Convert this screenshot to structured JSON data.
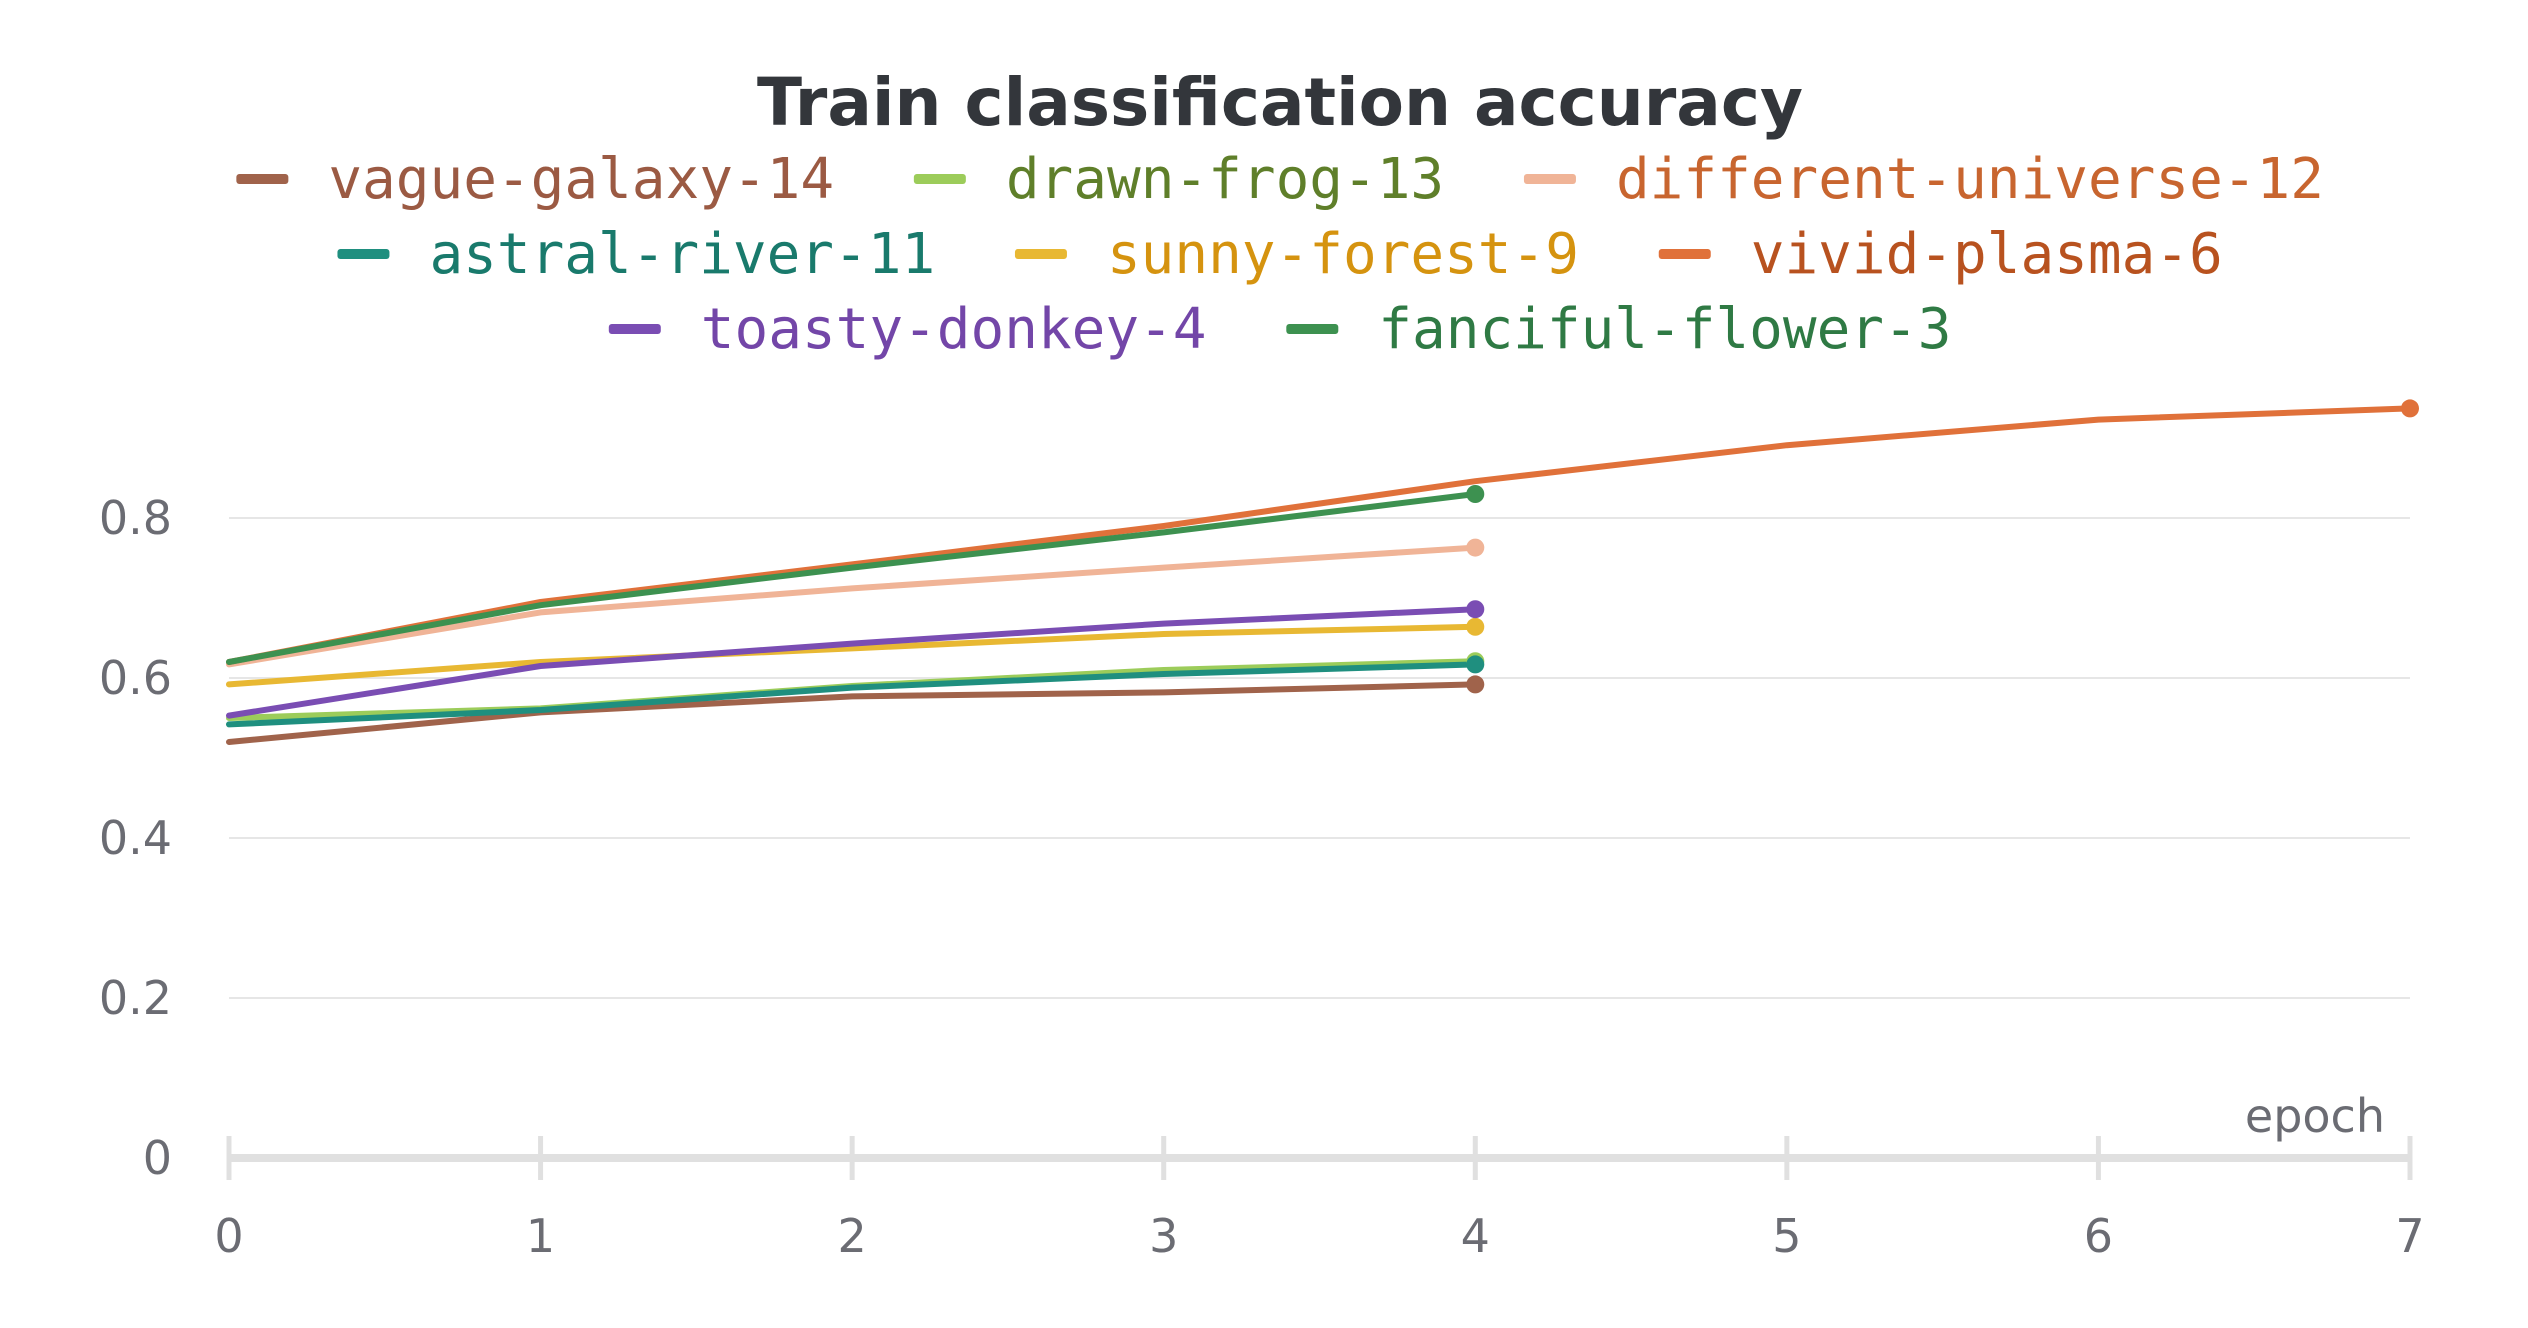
{
  "chart_data": {
    "type": "line",
    "title": "Train classification accuracy",
    "xlabel": "epoch",
    "ylabel": "",
    "xlim": [
      0,
      7
    ],
    "ylim": [
      0,
      0.95
    ],
    "x_ticks": [
      "0",
      "1",
      "2",
      "3",
      "4",
      "5",
      "6",
      "7"
    ],
    "y_ticks": [
      "0",
      "0.2",
      "0.4",
      "0.6",
      "0.8"
    ],
    "grid": true,
    "legend_position": "top",
    "series": [
      {
        "name": "vague-galaxy-14",
        "color": "#a0634b",
        "x": [
          0,
          1,
          2,
          3,
          4
        ],
        "values": [
          0.52,
          0.557,
          0.577,
          0.582,
          0.592
        ]
      },
      {
        "name": "drawn-frog-13",
        "color": "#9ccc5a",
        "x": [
          0,
          1,
          2,
          3,
          4
        ],
        "values": [
          0.55,
          0.562,
          0.59,
          0.61,
          0.621
        ]
      },
      {
        "name": "different-universe-12",
        "color": "#f0b497",
        "x": [
          0,
          1,
          2,
          3,
          4
        ],
        "values": [
          0.617,
          0.682,
          0.712,
          0.738,
          0.763
        ]
      },
      {
        "name": "astral-river-11",
        "color": "#1f8f7f",
        "x": [
          0,
          1,
          2,
          3,
          4
        ],
        "values": [
          0.542,
          0.56,
          0.588,
          0.605,
          0.617
        ]
      },
      {
        "name": "sunny-forest-9",
        "color": "#e8b833",
        "x": [
          0,
          1,
          2,
          3,
          4
        ],
        "values": [
          0.592,
          0.62,
          0.637,
          0.655,
          0.664
        ]
      },
      {
        "name": "vivid-plasma-6",
        "color": "#e0713a",
        "x": [
          0,
          1,
          2,
          3,
          4,
          5,
          6,
          7
        ],
        "values": [
          0.62,
          0.695,
          0.742,
          0.79,
          0.846,
          0.891,
          0.923,
          0.937
        ]
      },
      {
        "name": "toasty-donkey-4",
        "color": "#7a4db3",
        "x": [
          0,
          1,
          2,
          3,
          4
        ],
        "values": [
          0.553,
          0.615,
          0.643,
          0.668,
          0.686
        ]
      },
      {
        "name": "fanciful-flower-3",
        "color": "#3d9150",
        "x": [
          0,
          1,
          2,
          3,
          4
        ],
        "values": [
          0.62,
          0.691,
          0.738,
          0.782,
          0.83
        ]
      }
    ]
  },
  "legend_text_colors": {
    "vague-galaxy-14": "#9b5a43",
    "drawn-frog-13": "#5f7f2a",
    "different-universe-12": "#c8652f",
    "astral-river-11": "#197a6c",
    "sunny-forest-9": "#d5930f",
    "vivid-plasma-6": "#b8521f",
    "toasty-donkey-4": "#7346a8",
    "fanciful-flower-3": "#2f7a44"
  }
}
